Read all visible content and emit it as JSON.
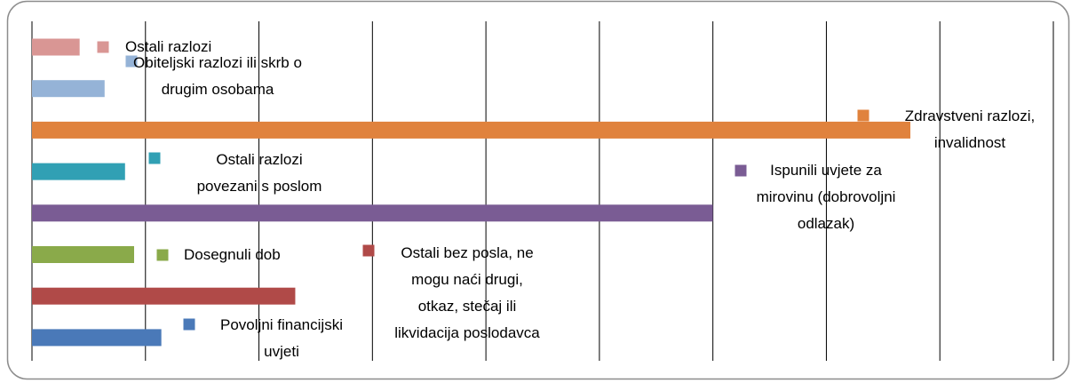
{
  "chart_data": {
    "type": "barh",
    "categories": [
      "Ostali razlozi",
      "Obiteljski razlozi ili skrb o drugim osobama",
      "Zdravstveni razlozi, invalidnost",
      "Ostali razlozi povezani s poslom",
      "Ispunili uvjete za mirovinu (dobrovoljni odlazak)",
      "Dosegnuli dob",
      "Ostali bez posla, ne mogu naći drugi, otkaz, stečaj ili likvidacija poslodavca",
      "Povoljni financijski uvjeti"
    ],
    "values": [
      2.1,
      3.2,
      38.7,
      4.1,
      30,
      4.5,
      11.6,
      5.7
    ],
    "colors": [
      "#d99694",
      "#95b3d7",
      "#e0823d",
      "#31a0b4",
      "#7a5c94",
      "#8aaa4a",
      "#b04a48",
      "#4a79b8"
    ],
    "xlim": [
      0,
      45
    ],
    "xticks": [
      0,
      5,
      10,
      15,
      20,
      25,
      30,
      35,
      40,
      45
    ],
    "grid": true
  }
}
